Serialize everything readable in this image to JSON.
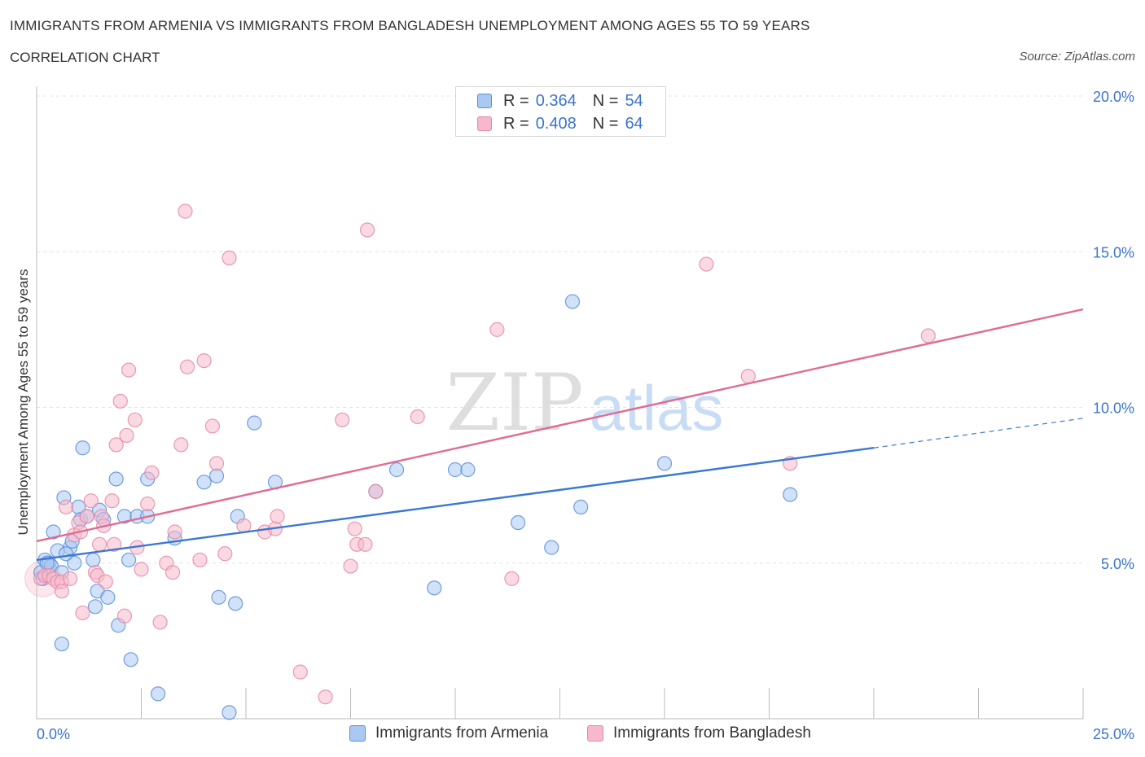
{
  "header": {
    "title": "IMMIGRANTS FROM ARMENIA VS IMMIGRANTS FROM BANGLADESH UNEMPLOYMENT AMONG AGES 55 TO 59 YEARS",
    "subtitle": "CORRELATION CHART",
    "source": "Source: ZipAtlas.com"
  },
  "watermark": {
    "zip": "ZIP",
    "atlas": "atlas"
  },
  "legend_top": {
    "rows": [
      {
        "r_label": "R =",
        "r_value": "0.364",
        "n_label": "N =",
        "n_value": "54",
        "color": "#a9c8f2"
      },
      {
        "r_label": "R =",
        "r_value": "0.408",
        "n_label": "N =",
        "n_value": "64",
        "color": "#f6b9cc"
      }
    ]
  },
  "chart_data": {
    "type": "scatter",
    "title": "IMMIGRANTS FROM ARMENIA VS IMMIGRANTS FROM BANGLADESH UNEMPLOYMENT AMONG AGES 55 TO 59 YEARS",
    "xlabel": "",
    "ylabel": "Unemployment Among Ages 55 to 59 years",
    "xlim": [
      0,
      25
    ],
    "ylim": [
      0,
      20
    ],
    "x_tick_labels": [
      "0.0%",
      "25.0%"
    ],
    "y_tick_values": [
      5,
      10,
      15,
      20
    ],
    "y_tick_labels": [
      "5.0%",
      "10.0%",
      "15.0%",
      "20.0%"
    ],
    "grid": true,
    "legend": "bottom",
    "series": [
      {
        "name": "Immigrants from Armenia",
        "color": "#5b8fd8",
        "fill": "#a9c8f2",
        "trend_color": "#3a78d2",
        "trend": {
          "x0": 0,
          "y0": 5.1,
          "x1": 20.0,
          "y1": 8.7,
          "dash_to_x": 25.0,
          "dash_to_y": 9.65
        },
        "points": [
          [
            0.1,
            4.7
          ],
          [
            0.15,
            4.5
          ],
          [
            0.2,
            5.1
          ],
          [
            0.3,
            5.0
          ],
          [
            0.35,
            4.9
          ],
          [
            0.4,
            6.0
          ],
          [
            0.5,
            5.4
          ],
          [
            0.6,
            2.4
          ],
          [
            0.6,
            4.7
          ],
          [
            0.65,
            7.1
          ],
          [
            0.8,
            5.5
          ],
          [
            0.85,
            5.7
          ],
          [
            0.9,
            5.0
          ],
          [
            1.0,
            6.8
          ],
          [
            1.05,
            6.4
          ],
          [
            1.1,
            8.7
          ],
          [
            1.2,
            6.5
          ],
          [
            1.35,
            5.1
          ],
          [
            1.4,
            3.6
          ],
          [
            1.45,
            4.1
          ],
          [
            1.5,
            6.7
          ],
          [
            1.7,
            3.9
          ],
          [
            1.9,
            7.7
          ],
          [
            1.95,
            3.0
          ],
          [
            2.1,
            6.5
          ],
          [
            2.2,
            5.1
          ],
          [
            2.25,
            1.9
          ],
          [
            2.4,
            6.5
          ],
          [
            2.65,
            6.5
          ],
          [
            2.65,
            7.7
          ],
          [
            2.9,
            0.8
          ],
          [
            3.3,
            5.8
          ],
          [
            4.0,
            7.6
          ],
          [
            4.3,
            7.8
          ],
          [
            4.35,
            3.9
          ],
          [
            4.6,
            0.2
          ],
          [
            4.75,
            3.7
          ],
          [
            4.8,
            6.5
          ],
          [
            5.2,
            9.5
          ],
          [
            5.7,
            7.6
          ],
          [
            8.1,
            7.3
          ],
          [
            8.6,
            8.0
          ],
          [
            9.5,
            4.2
          ],
          [
            10.0,
            8.0
          ],
          [
            10.3,
            8.0
          ],
          [
            11.5,
            6.3
          ],
          [
            12.3,
            5.5
          ],
          [
            12.8,
            13.4
          ],
          [
            13.0,
            6.8
          ],
          [
            15.0,
            8.2
          ],
          [
            18.0,
            7.2
          ],
          [
            0.25,
            5.0
          ],
          [
            0.7,
            5.3
          ],
          [
            1.6,
            6.4
          ]
        ]
      },
      {
        "name": "Immigrants from Bangladesh",
        "color": "#e58aa6",
        "fill": "#f6b9cc",
        "trend_color": "#e06b93",
        "trend": {
          "x0": 0,
          "y0": 5.7,
          "x1": 25.0,
          "y1": 13.15
        },
        "points": [
          [
            0.1,
            4.5
          ],
          [
            0.2,
            4.6
          ],
          [
            0.3,
            4.6
          ],
          [
            0.4,
            4.5
          ],
          [
            0.5,
            4.4
          ],
          [
            0.6,
            4.4
          ],
          [
            0.6,
            4.1
          ],
          [
            0.7,
            6.8
          ],
          [
            0.8,
            4.5
          ],
          [
            0.9,
            5.9
          ],
          [
            1.0,
            6.3
          ],
          [
            1.05,
            6.0
          ],
          [
            1.1,
            3.4
          ],
          [
            1.2,
            6.5
          ],
          [
            1.3,
            7.0
          ],
          [
            1.4,
            4.7
          ],
          [
            1.45,
            4.6
          ],
          [
            1.5,
            5.6
          ],
          [
            1.55,
            6.5
          ],
          [
            1.6,
            6.2
          ],
          [
            1.65,
            4.4
          ],
          [
            1.8,
            7.0
          ],
          [
            1.85,
            5.6
          ],
          [
            1.9,
            8.8
          ],
          [
            2.0,
            10.2
          ],
          [
            2.1,
            3.3
          ],
          [
            2.15,
            9.1
          ],
          [
            2.2,
            11.2
          ],
          [
            2.35,
            9.6
          ],
          [
            2.4,
            5.5
          ],
          [
            2.5,
            4.8
          ],
          [
            2.65,
            6.9
          ],
          [
            2.75,
            7.9
          ],
          [
            2.95,
            3.1
          ],
          [
            3.1,
            5.0
          ],
          [
            3.25,
            4.7
          ],
          [
            3.3,
            6.0
          ],
          [
            3.45,
            8.8
          ],
          [
            3.55,
            16.3
          ],
          [
            3.6,
            11.3
          ],
          [
            3.9,
            5.1
          ],
          [
            4.0,
            11.5
          ],
          [
            4.2,
            9.4
          ],
          [
            4.3,
            8.2
          ],
          [
            4.5,
            5.3
          ],
          [
            4.6,
            14.8
          ],
          [
            4.95,
            6.2
          ],
          [
            5.45,
            6.0
          ],
          [
            5.7,
            6.1
          ],
          [
            5.75,
            6.5
          ],
          [
            6.3,
            1.5
          ],
          [
            6.9,
            0.7
          ],
          [
            7.3,
            9.6
          ],
          [
            7.5,
            4.9
          ],
          [
            7.6,
            6.1
          ],
          [
            7.65,
            5.6
          ],
          [
            7.85,
            5.6
          ],
          [
            7.9,
            15.7
          ],
          [
            8.1,
            7.3
          ],
          [
            9.1,
            9.7
          ],
          [
            11.0,
            12.5
          ],
          [
            11.35,
            4.5
          ],
          [
            16.0,
            14.6
          ],
          [
            21.3,
            12.3
          ]
        ]
      }
    ],
    "extra_points": [
      {
        "series": 1,
        "x": 17.0,
        "y": 11.0
      },
      {
        "series": 1,
        "x": 18.0,
        "y": 8.2
      }
    ]
  },
  "legend_bottom": {
    "items": [
      {
        "label": "Immigrants from Armenia",
        "color": "#a9c8f2",
        "border": "#5b8fd8"
      },
      {
        "label": "Immigrants from Bangladesh",
        "color": "#f6b9cc",
        "border": "#e58aa6"
      }
    ]
  }
}
